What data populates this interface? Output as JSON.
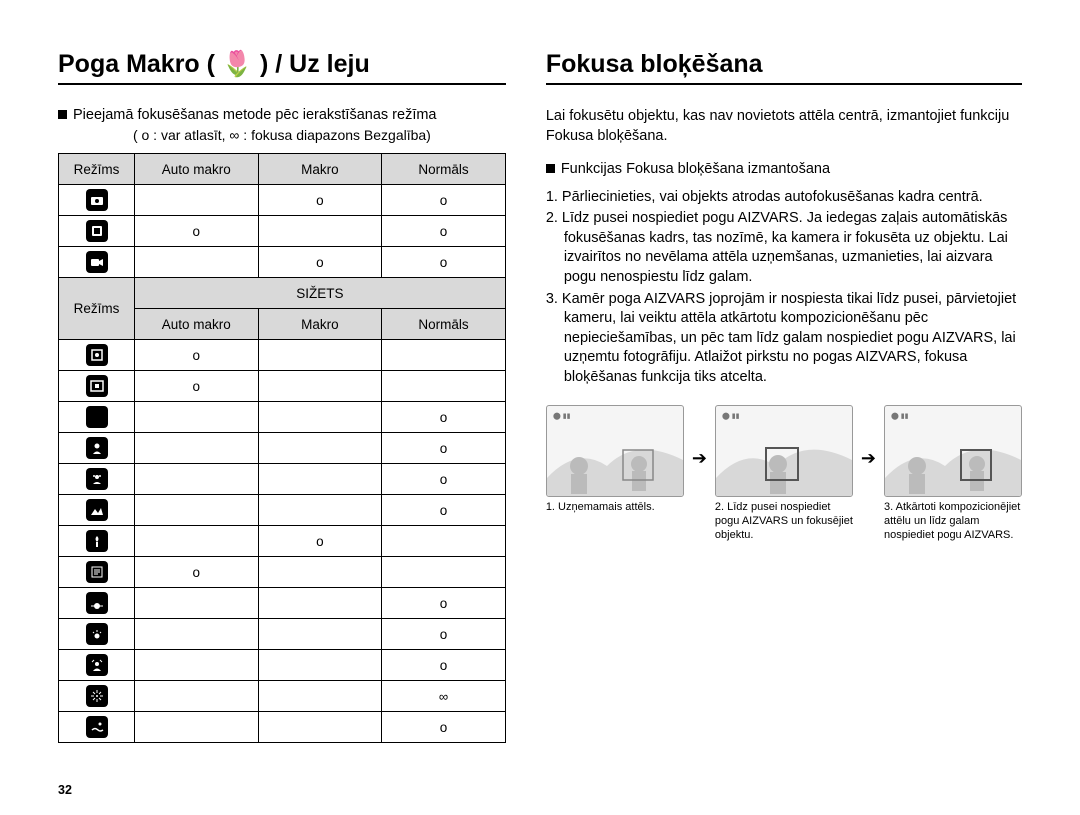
{
  "page_number": "32",
  "left": {
    "title": "Poga Makro ( 🌷 ) / Uz leju",
    "intro": "Pieejamā fokusēšanas metode pēc ierakstīšanas režīma",
    "legend": "( o : var atlasīt, ∞ : fokusa diapazons Bezgalība)",
    "header": {
      "mode": "Režīms",
      "auto_macro": "Auto makro",
      "macro": "Makro",
      "normal": "Normāls"
    },
    "top_rows": [
      {
        "icon": "camera",
        "auto": "",
        "macro": "o",
        "normal": "o"
      },
      {
        "icon": "dual",
        "auto": "o",
        "macro": "",
        "normal": "o"
      },
      {
        "icon": "movie",
        "auto": "",
        "macro": "o",
        "normal": "o"
      }
    ],
    "scene_header": "SIŽETS",
    "scene_sub": {
      "mode": "Režīms",
      "auto_macro": "Auto makro",
      "macro": "Makro",
      "normal": "Normāls"
    },
    "scene_rows": [
      {
        "icon": "frame1",
        "auto": "o",
        "macro": "",
        "normal": ""
      },
      {
        "icon": "frame2",
        "auto": "o",
        "macro": "",
        "normal": ""
      },
      {
        "icon": "night",
        "auto": "",
        "macro": "",
        "normal": "o"
      },
      {
        "icon": "portrait",
        "auto": "",
        "macro": "",
        "normal": "o"
      },
      {
        "icon": "child",
        "auto": "",
        "macro": "",
        "normal": "o"
      },
      {
        "icon": "landscape",
        "auto": "",
        "macro": "",
        "normal": "o"
      },
      {
        "icon": "closeup",
        "auto": "",
        "macro": "o",
        "normal": ""
      },
      {
        "icon": "text",
        "auto": "o",
        "macro": "",
        "normal": ""
      },
      {
        "icon": "sunset",
        "auto": "",
        "macro": "",
        "normal": "o"
      },
      {
        "icon": "dawn",
        "auto": "",
        "macro": "",
        "normal": "o"
      },
      {
        "icon": "backlight",
        "auto": "",
        "macro": "",
        "normal": "o"
      },
      {
        "icon": "firework",
        "auto": "",
        "macro": "",
        "normal": "∞"
      },
      {
        "icon": "beach",
        "auto": "",
        "macro": "",
        "normal": "o"
      }
    ]
  },
  "right": {
    "title": "Fokusa bloķēšana",
    "para1": "Lai fokusētu objektu, kas nav novietots attēla centrā, izmantojiet funkciju Fokusa bloķēšana.",
    "lead": "Funkcijas Fokusa bloķēšana izmantošana",
    "steps": [
      "1. Pārliecinieties, vai objekts atrodas autofokusēšanas kadra centrā.",
      "2. Līdz pusei nospiediet pogu AIZVARS. Ja iedegas zaļais automātiskās fokusēšanas kadrs, tas nozīmē, ka kamera ir fokusēta uz objektu. Lai izvairītos no nevēlama attēla uzņemšanas, uzmanieties, lai aizvara pogu nenospiestu līdz galam.",
      "3. Kamēr poga AIZVARS joprojām ir nospiesta tikai līdz pusei, pārvietojiet kameru, lai veiktu attēla atkārtotu kompozicionēšanu pēc nepieciešamības, un pēc tam līdz galam nospiediet pogu AIZVARS, lai uzņemtu fotogrāfiju. Atlaižot pirkstu no pogas AIZVARS, fokusa bloķēšanas funkcija tiks atcelta."
    ],
    "captions": [
      "1. Uzņemamais attēls.",
      "2. Līdz pusei nospiediet pogu AIZVARS un fokusējiet objektu.",
      "3. Atkārtoti kompozicionējiet attēlu un līdz galam nospiediet pogu AIZVARS."
    ]
  }
}
